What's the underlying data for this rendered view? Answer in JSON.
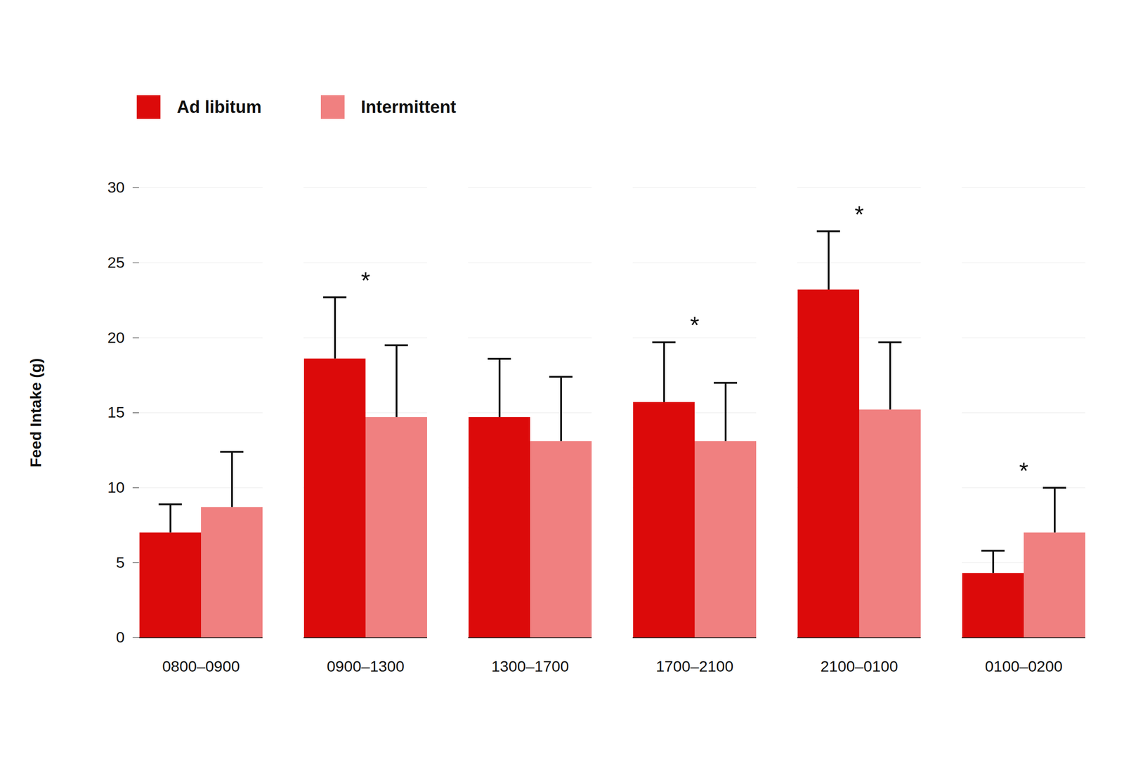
{
  "chart_data": {
    "type": "bar",
    "categories": [
      "0800–0900",
      "0900–1300",
      "1300–1700",
      "1700–2100",
      "2100–0100",
      "0100–0200"
    ],
    "series": [
      {
        "name": "Ad libitum",
        "color": "#dc0a0a",
        "values": [
          7.0,
          18.6,
          14.7,
          15.7,
          23.2,
          4.3
        ],
        "errors": [
          1.9,
          4.1,
          3.9,
          4.0,
          3.9,
          1.5
        ]
      },
      {
        "name": "Intermittent",
        "color": "#f08080",
        "values": [
          8.7,
          14.7,
          13.1,
          13.1,
          15.2,
          7.0
        ],
        "errors": [
          3.7,
          4.8,
          4.3,
          3.9,
          4.5,
          3.0
        ]
      }
    ],
    "y_label": "Feed Intake (g)",
    "ylim": [
      0,
      30
    ],
    "yticks": [
      0,
      5,
      10,
      15,
      20,
      25,
      30
    ],
    "grid": true,
    "legend": "top-left",
    "annotations": [
      {
        "category": "0900–1300",
        "text": "*"
      },
      {
        "category": "1700–2100",
        "text": "*"
      },
      {
        "category": "2100–0100",
        "text": "*"
      },
      {
        "category": "0100–0200",
        "text": "*"
      }
    ]
  }
}
